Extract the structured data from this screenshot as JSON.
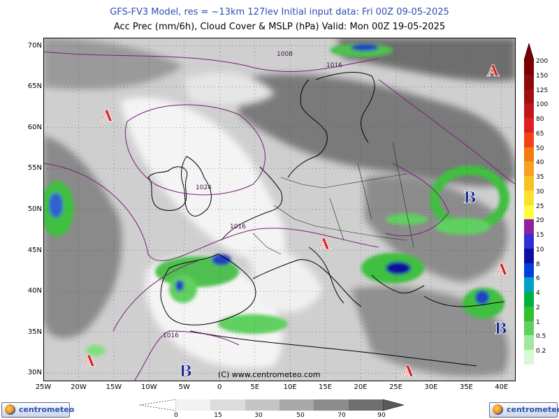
{
  "header": {
    "line1": "GFS-FV3 Model, res = ~13km 127lev    Initial input data: Fri 00Z 09-05-2025",
    "line2": "Acc Prec (mm/6h), Cloud Cover & MSLP (hPa)  Valid: Mon 00Z 19-05-2025"
  },
  "map": {
    "lat_labels": [
      "70N",
      "65N",
      "60N",
      "55N",
      "50N",
      "45N",
      "40N",
      "35N",
      "30N"
    ],
    "lon_labels": [
      "25W",
      "20W",
      "15W",
      "10W",
      "5W",
      "0",
      "5E",
      "10E",
      "15E",
      "20E",
      "25E",
      "30E",
      "35E",
      "40E"
    ],
    "isobar_labels": [
      "1008",
      "1016",
      "1024",
      "1016",
      "1016"
    ],
    "pressure_centers": [
      {
        "symbol": "A",
        "lon": -16,
        "lat": 61.5,
        "type": "high"
      },
      {
        "symbol": "A",
        "lon": 14.8,
        "lat": 45.8,
        "type": "high"
      },
      {
        "symbol": "A",
        "lon": 38.8,
        "lat": 67,
        "type": "high"
      },
      {
        "symbol": "A",
        "lon": 40,
        "lat": 42.7,
        "type": "high"
      },
      {
        "symbol": "A",
        "lon": -18.5,
        "lat": 31.5,
        "type": "high"
      },
      {
        "symbol": "A",
        "lon": 26.7,
        "lat": 30.3,
        "type": "high"
      },
      {
        "symbol": "B",
        "lon": 35.5,
        "lat": 51.5,
        "type": "low"
      },
      {
        "symbol": "B",
        "lon": 39.9,
        "lat": 35.5,
        "type": "low"
      },
      {
        "symbol": "B",
        "lon": -4.8,
        "lat": 30.3,
        "type": "low"
      }
    ],
    "copyright": "(C) www.centrometeo.com",
    "colors": {
      "high": "#d62020",
      "low": "#1a2a8f",
      "isobar": "#7a1f7a"
    }
  },
  "precip_scale": {
    "labels": [
      "200",
      "150",
      "125",
      "100",
      "80",
      "65",
      "50",
      "40",
      "35",
      "30",
      "25",
      "20",
      "15",
      "10",
      "8",
      "6",
      "4",
      "2",
      "1",
      "0.5",
      "0.2"
    ],
    "colors": [
      "#7a0000",
      "#8c0a0a",
      "#a01010",
      "#c01818",
      "#e02020",
      "#f04418",
      "#f47a12",
      "#f8a020",
      "#f8c020",
      "#fce030",
      "#fcfc40",
      "#9020a0",
      "#3030d0",
      "#1010a0",
      "#0040d8",
      "#00a0c8",
      "#00b040",
      "#30c030",
      "#60d060",
      "#a0e8a0",
      "#d8f8d8"
    ]
  },
  "cloud_scale": {
    "labels": [
      "0",
      "15",
      "30",
      "50",
      "70",
      "90"
    ],
    "colors": [
      "#f2f2f2",
      "#dcdcdc",
      "#c4c4c4",
      "#a8a8a8",
      "#8c8c8c",
      "#6e6e6e"
    ]
  },
  "logos": {
    "left": "centrometeo",
    "right": "centrometeo"
  }
}
